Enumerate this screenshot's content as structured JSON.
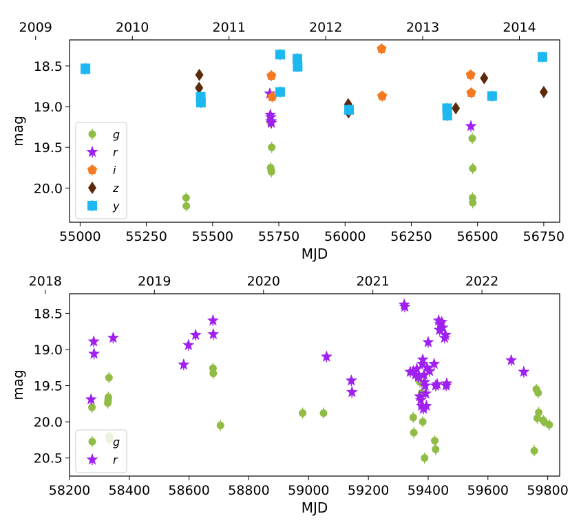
{
  "chart_data": [
    {
      "type": "scatter",
      "xlabel": "MJD",
      "ylabel": "mag",
      "xlim": [
        54960,
        56810
      ],
      "ylim": [
        20.42,
        18.18
      ],
      "y_inverted": true,
      "xticks": [
        55000,
        55250,
        55500,
        55750,
        56000,
        56250,
        56500,
        56750
      ],
      "yticks": [
        18.5,
        19.0,
        19.5,
        20.0
      ],
      "ytick_labels": [
        "18.5",
        "19.0",
        "19.5",
        "20.0"
      ],
      "top_axis": {
        "labels": [
          "2009",
          "2010",
          "2011",
          "2012",
          "2013",
          "2014"
        ],
        "mjd": [
          54832,
          55197,
          55562,
          55927,
          56293,
          56658
        ]
      },
      "legend": {
        "position": "bottom-left",
        "entries": [
          "g",
          "r",
          "i",
          "z",
          "y"
        ]
      },
      "series": [
        {
          "name": "g",
          "color": "#8fbc45",
          "marker": "circle",
          "points": [
            [
              55400,
              20.12
            ],
            [
              55401,
              20.22
            ],
            [
              55718,
              19.19
            ],
            [
              55719,
              19.75
            ],
            [
              55721,
              19.78
            ],
            [
              55722,
              19.8
            ],
            [
              55723,
              19.5
            ],
            [
              56480,
              19.39
            ],
            [
              56482,
              19.76
            ],
            [
              56481,
              20.12
            ],
            [
              56482,
              20.18
            ]
          ]
        },
        {
          "name": "r",
          "color": "#a020f0",
          "marker": "star",
          "points": [
            [
              55716,
              18.84
            ],
            [
              55718,
              19.1
            ],
            [
              55720,
              19.13
            ],
            [
              55721,
              19.18
            ],
            [
              55722,
              19.2
            ],
            [
              56475,
              19.24
            ]
          ]
        },
        {
          "name": "i",
          "color": "#f47920",
          "marker": "pentagon",
          "points": [
            [
              55722,
              18.62
            ],
            [
              55725,
              18.88
            ],
            [
              56138,
              18.29
            ],
            [
              56140,
              18.87
            ],
            [
              56474,
              18.61
            ],
            [
              56476,
              18.83
            ]
          ]
        },
        {
          "name": "z",
          "color": "#5a2a0a",
          "marker": "diamond",
          "points": [
            [
              55450,
              18.61
            ],
            [
              55449,
              18.77
            ],
            [
              56012,
              18.97
            ],
            [
              56013,
              19.07
            ],
            [
              56418,
              19.02
            ],
            [
              56525,
              18.65
            ],
            [
              56750,
              18.82
            ]
          ]
        },
        {
          "name": "y",
          "color": "#1eb8f0",
          "marker": "square",
          "points": [
            [
              55020,
              18.53
            ],
            [
              55020,
              18.54
            ],
            [
              55455,
              18.88
            ],
            [
              55456,
              18.95
            ],
            [
              55755,
              18.36
            ],
            [
              55755,
              18.82
            ],
            [
              55820,
              18.41
            ],
            [
              55821,
              18.51
            ],
            [
              56015,
              19.04
            ],
            [
              56385,
              19.02
            ],
            [
              56386,
              19.11
            ],
            [
              56555,
              18.87
            ],
            [
              56745,
              18.39
            ]
          ]
        }
      ]
    },
    {
      "type": "scatter",
      "xlabel": "MJD",
      "ylabel": "mag",
      "xlim": [
        58200,
        59840
      ],
      "ylim": [
        20.75,
        18.23
      ],
      "y_inverted": true,
      "xticks": [
        58200,
        58400,
        58600,
        58800,
        59000,
        59200,
        59400,
        59600,
        59800
      ],
      "yticks": [
        18.5,
        19.0,
        19.5,
        20.0,
        20.5
      ],
      "ytick_labels": [
        "18.5",
        "19.0",
        "19.5",
        "20.0",
        "20.5"
      ],
      "top_axis": {
        "labels": [
          "2018",
          "2019",
          "2020",
          "2021",
          "2022"
        ],
        "mjd": [
          58119,
          58484,
          58849,
          59215,
          59580
        ]
      },
      "legend": {
        "position": "bottom-left",
        "entries": [
          "g",
          "r"
        ]
      },
      "series": [
        {
          "name": "g",
          "color": "#8fbc45",
          "marker": "circle",
          "points": [
            [
              58275,
              19.8
            ],
            [
              58328,
              19.74
            ],
            [
              58329,
              19.7
            ],
            [
              58330,
              19.66
            ],
            [
              58332,
              19.39
            ],
            [
              58333,
              20.2
            ],
            [
              58334,
              20.24
            ],
            [
              58680,
              19.26
            ],
            [
              58681,
              19.33
            ],
            [
              58705,
              20.05
            ],
            [
              58980,
              19.88
            ],
            [
              59050,
              19.88
            ],
            [
              59350,
              19.94
            ],
            [
              59352,
              20.15
            ],
            [
              59372,
              19.45
            ],
            [
              59378,
              19.6
            ],
            [
              59382,
              20.0
            ],
            [
              59388,
              20.5
            ],
            [
              59422,
              20.26
            ],
            [
              59425,
              20.38
            ],
            [
              59755,
              20.4
            ],
            [
              59762,
              19.55
            ],
            [
              59765,
              19.95
            ],
            [
              59768,
              19.6
            ],
            [
              59770,
              19.87
            ],
            [
              59785,
              19.98
            ],
            [
              59788,
              20.0
            ],
            [
              59805,
              20.04
            ]
          ]
        },
        {
          "name": "r",
          "color": "#a020f0",
          "marker": "star",
          "points": [
            [
              58272,
              19.69
            ],
            [
              58281,
              18.89
            ],
            [
              58282,
              19.06
            ],
            [
              58346,
              18.84
            ],
            [
              58582,
              19.21
            ],
            [
              58598,
              18.94
            ],
            [
              58622,
              18.8
            ],
            [
              58680,
              18.6
            ],
            [
              58681,
              18.79
            ],
            [
              59060,
              19.1
            ],
            [
              59143,
              19.43
            ],
            [
              59145,
              19.59
            ],
            [
              59320,
              18.38
            ],
            [
              59322,
              18.41
            ],
            [
              59340,
              19.31
            ],
            [
              59350,
              19.3
            ],
            [
              59358,
              19.35
            ],
            [
              59362,
              19.27
            ],
            [
              59368,
              19.38
            ],
            [
              59372,
              19.65
            ],
            [
              59375,
              19.7
            ],
            [
              59378,
              19.78
            ],
            [
              59380,
              19.2
            ],
            [
              59382,
              19.14
            ],
            [
              59384,
              19.82
            ],
            [
              59386,
              19.35
            ],
            [
              59388,
              19.45
            ],
            [
              59390,
              19.5
            ],
            [
              59392,
              19.61
            ],
            [
              59394,
              19.78
            ],
            [
              59396,
              19.25
            ],
            [
              59400,
              18.9
            ],
            [
              59405,
              19.3
            ],
            [
              59420,
              19.2
            ],
            [
              59425,
              19.5
            ],
            [
              59430,
              19.48
            ],
            [
              59435,
              18.6
            ],
            [
              59438,
              18.73
            ],
            [
              59440,
              18.65
            ],
            [
              59445,
              18.62
            ],
            [
              59448,
              18.7
            ],
            [
              59455,
              18.84
            ],
            [
              59458,
              18.8
            ],
            [
              59460,
              19.5
            ],
            [
              59462,
              19.47
            ],
            [
              59678,
              19.15
            ],
            [
              59720,
              19.31
            ]
          ]
        }
      ]
    }
  ]
}
